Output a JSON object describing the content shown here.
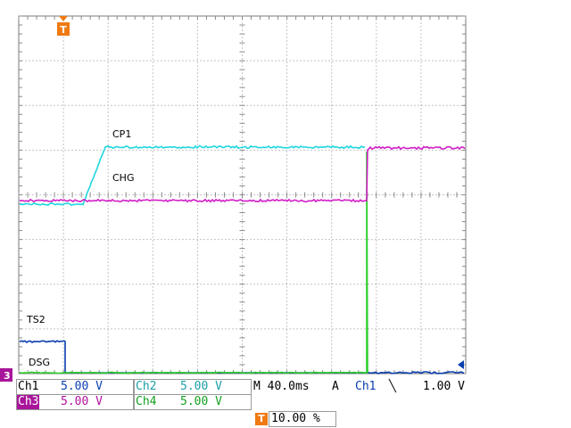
{
  "waveform_labels": {
    "cp1": "CP1",
    "chg": "CHG",
    "ts2": "TS2",
    "dsg": "DSG"
  },
  "markers": {
    "trigger_position_glyph": "T",
    "ground_ref_glyph": "3"
  },
  "status": {
    "ch1_label": "Ch1",
    "ch1_scale": "5.00 V",
    "ch2_label": "Ch2",
    "ch2_scale": "5.00 V",
    "ch3_label": "Ch3",
    "ch3_scale": "5.00 V",
    "ch4_label": "Ch4",
    "ch4_scale": "5.00 V",
    "timebase": "M 40.0ms",
    "trigger_mode": "A",
    "trigger_source": "Ch1",
    "trigger_slope": "╲",
    "trigger_level": "1.00 V",
    "trigger_position": "10.00 %"
  },
  "colors": {
    "ch1": "#0a3fb0",
    "ch2": "#1ed6e0",
    "ch3": "#d21ec8",
    "ch4": "#2ccf2c",
    "trigger": "#f07a12"
  }
}
